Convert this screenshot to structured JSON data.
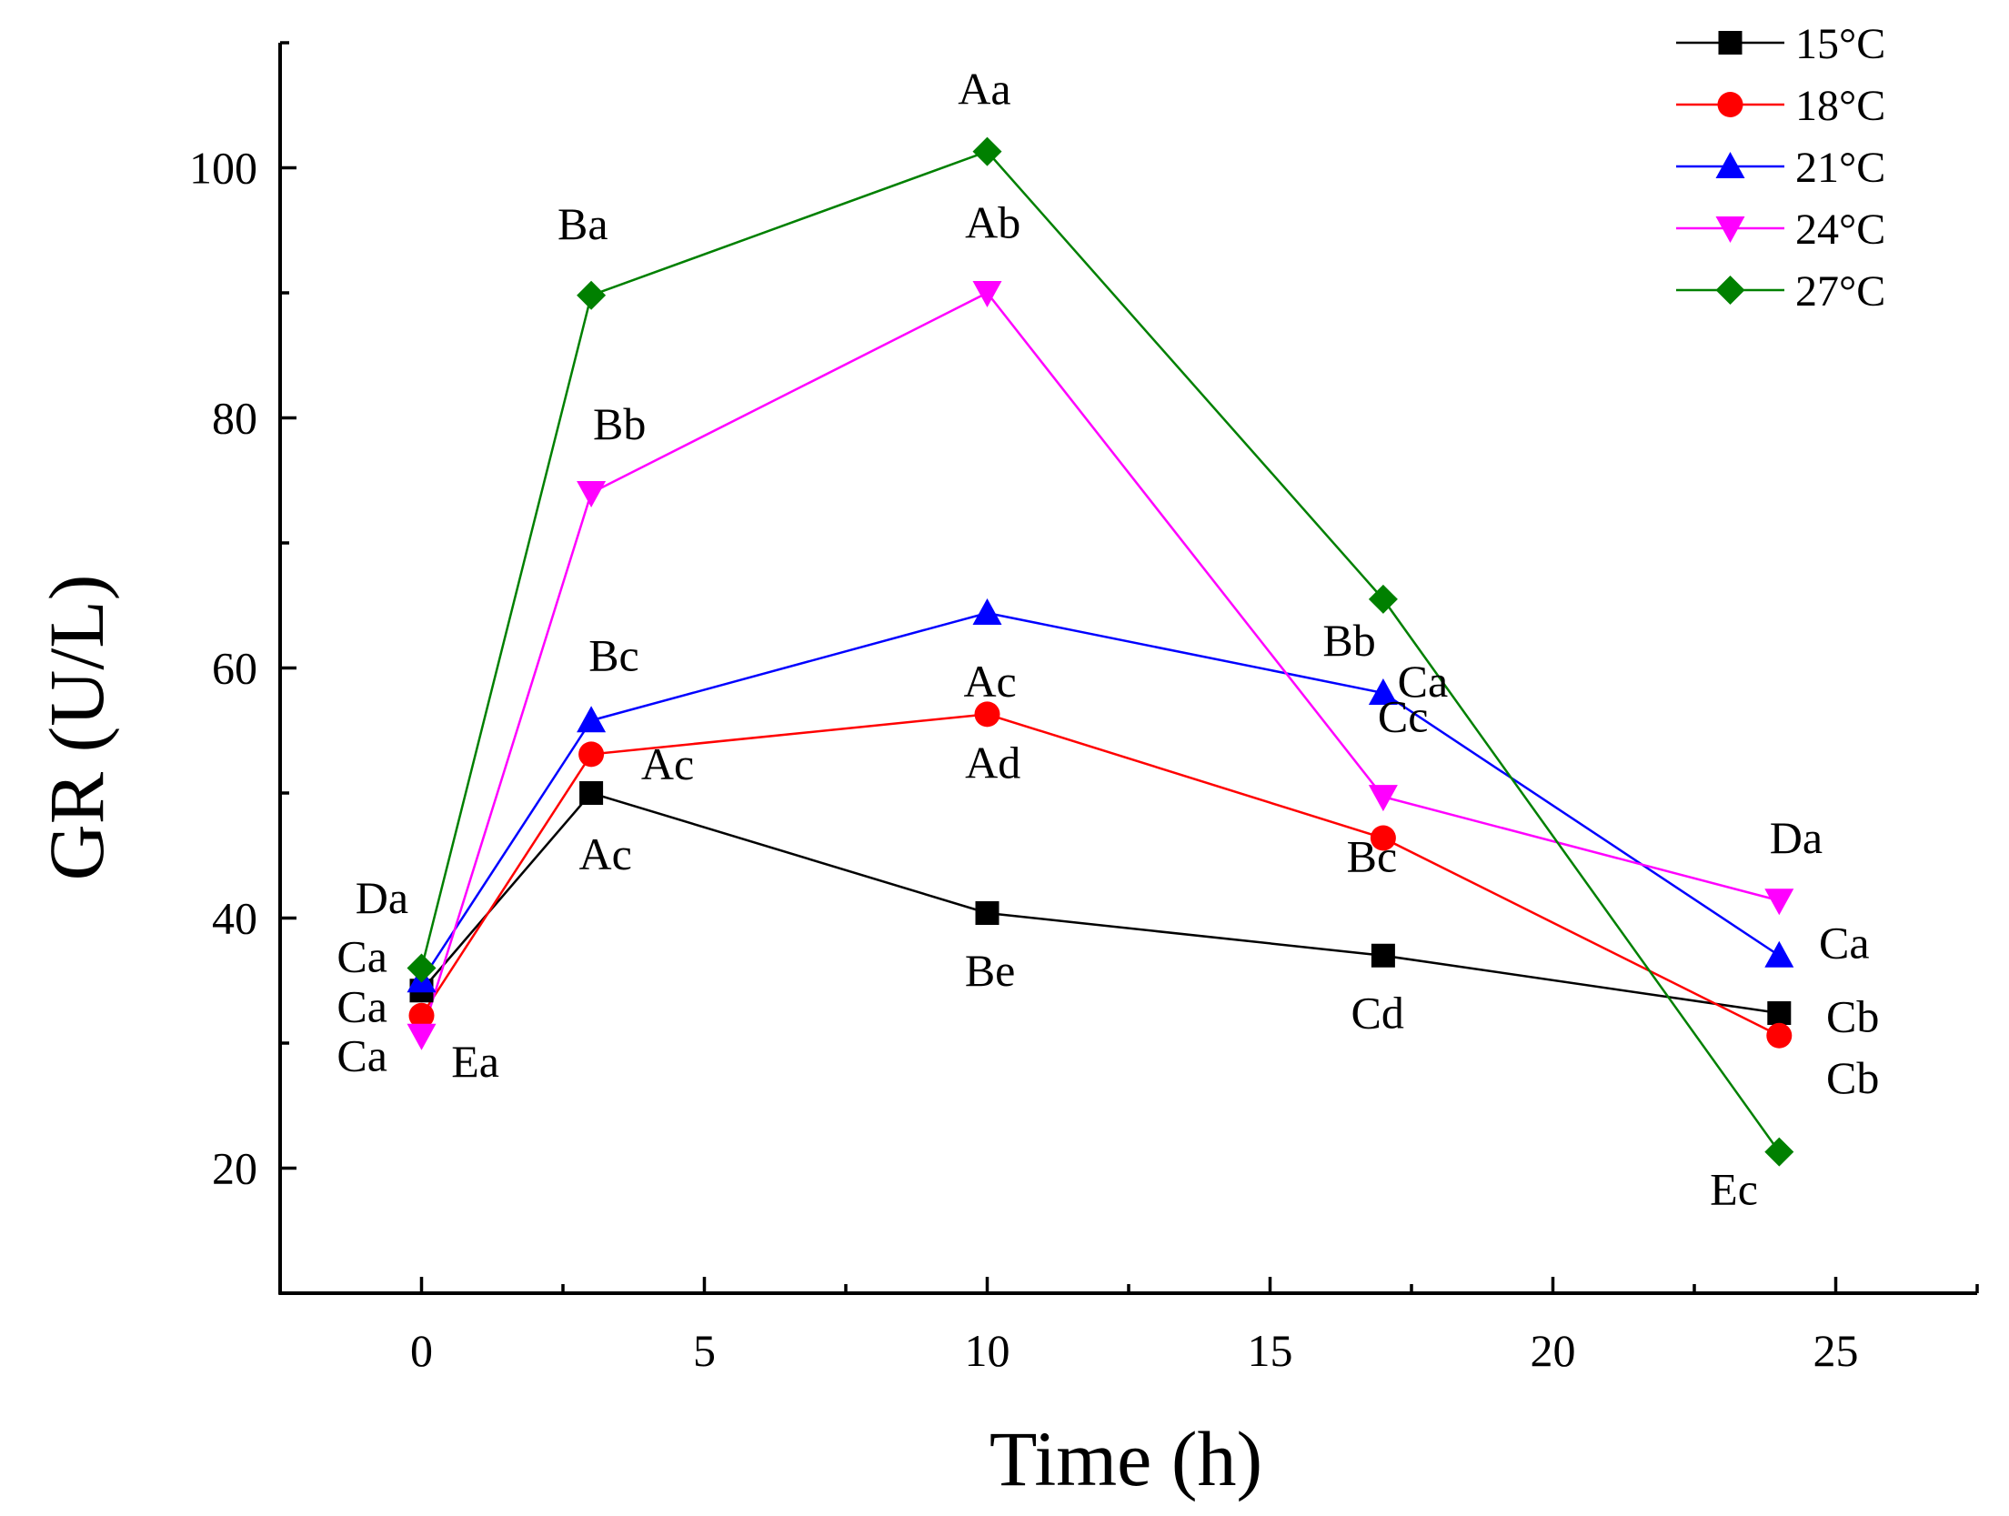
{
  "chart_data": {
    "type": "line",
    "title": "",
    "xlabel": "Time (h)",
    "ylabel": "GR (U/L)",
    "xlim": [
      -2.5,
      27.5
    ],
    "ylim": [
      10,
      110
    ],
    "xticks": [
      0,
      5,
      10,
      15,
      20,
      25
    ],
    "yticks": [
      20,
      40,
      60,
      80,
      100
    ],
    "grid": false,
    "legend_position": "top-right",
    "series": [
      {
        "name": "15°C",
        "color": "#000000",
        "marker": "square",
        "x": [
          0,
          3,
          10,
          17,
          24
        ],
        "y": [
          34.2,
          50.0,
          40.4,
          37.0,
          32.4
        ]
      },
      {
        "name": "18°C",
        "color": "#ff0000",
        "marker": "circle",
        "x": [
          0,
          3,
          10,
          17,
          24
        ],
        "y": [
          32.2,
          53.1,
          56.3,
          46.4,
          30.6
        ]
      },
      {
        "name": "21°C",
        "color": "#0000ff",
        "marker": "triangle-up",
        "x": [
          0,
          3,
          10,
          17,
          24
        ],
        "y": [
          35.0,
          55.8,
          64.4,
          58.0,
          37.0
        ]
      },
      {
        "name": "24°C",
        "color": "#ff00ff",
        "marker": "triangle-down",
        "x": [
          0,
          3,
          10,
          17,
          24
        ],
        "y": [
          30.6,
          74.0,
          90.0,
          49.7,
          41.4
        ]
      },
      {
        "name": "27°C",
        "color": "#008000",
        "marker": "diamond",
        "x": [
          0,
          3,
          10,
          17,
          24
        ],
        "y": [
          36.0,
          89.8,
          101.3,
          65.5,
          21.3
        ]
      }
    ],
    "annotations": [
      {
        "text": "Da",
        "x": -0.7,
        "y": 40.4
      },
      {
        "text": "Ca",
        "x": -1.05,
        "y": 35.7
      },
      {
        "text": "Ca",
        "x": -1.05,
        "y": 31.7
      },
      {
        "text": "Ca",
        "x": -1.05,
        "y": 27.8
      },
      {
        "text": "Ea",
        "x": 0.95,
        "y": 27.3
      },
      {
        "text": "Ba",
        "x": 2.85,
        "y": 94.3
      },
      {
        "text": "Bb",
        "x": 3.5,
        "y": 78.3
      },
      {
        "text": "Bc",
        "x": 3.4,
        "y": 59.8
      },
      {
        "text": "Ac",
        "x": 4.35,
        "y": 51.1
      },
      {
        "text": "Ac",
        "x": 3.25,
        "y": 43.9
      },
      {
        "text": "Aa",
        "x": 9.95,
        "y": 105.1
      },
      {
        "text": "Ab",
        "x": 10.1,
        "y": 94.4
      },
      {
        "text": "Ac",
        "x": 10.05,
        "y": 57.7
      },
      {
        "text": "Ad",
        "x": 10.1,
        "y": 51.2
      },
      {
        "text": "Be",
        "x": 10.05,
        "y": 34.6
      },
      {
        "text": "Ca",
        "x": 17.7,
        "y": 57.7
      },
      {
        "text": "Bb",
        "x": 16.4,
        "y": 61.0
      },
      {
        "text": "Cc",
        "x": 17.35,
        "y": 54.9
      },
      {
        "text": "Bc",
        "x": 16.8,
        "y": 43.7
      },
      {
        "text": "Cd",
        "x": 16.9,
        "y": 31.2
      },
      {
        "text": "Da",
        "x": 24.3,
        "y": 45.2
      },
      {
        "text": "Ca",
        "x": 25.15,
        "y": 36.8
      },
      {
        "text": "Cb",
        "x": 25.3,
        "y": 30.9
      },
      {
        "text": "Cb",
        "x": 25.3,
        "y": 26.0
      },
      {
        "text": "Ec",
        "x": 23.2,
        "y": 17.1
      }
    ]
  }
}
